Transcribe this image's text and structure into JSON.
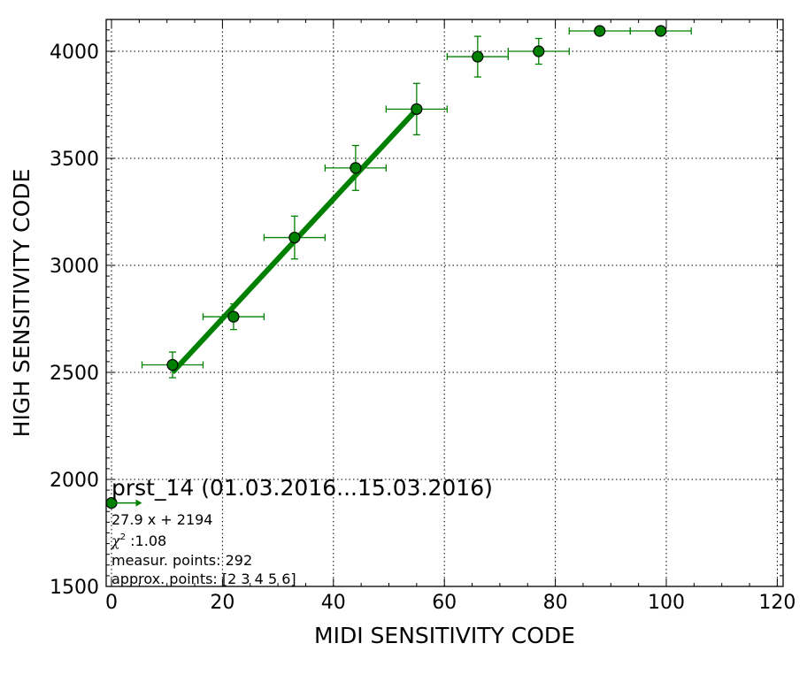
{
  "colors": {
    "series": "#008000",
    "marker_fill": "#008000",
    "marker_edge": "#000000",
    "grid": "#000000"
  },
  "chart_data": {
    "type": "scatter",
    "xlabel": "MIDI SENSITIVITY CODE",
    "ylabel": "HIGH SENSITIVITY CODE",
    "xlim": [
      0,
      120
    ],
    "ylim": [
      1500,
      4150
    ],
    "x_ticks": [
      0,
      20,
      40,
      60,
      80,
      100,
      120
    ],
    "y_ticks": [
      1500,
      2000,
      2500,
      3000,
      3500,
      4000
    ],
    "grid": true,
    "points": [
      {
        "x": 0,
        "y": 1890,
        "xerr": 0,
        "yerr": 0
      },
      {
        "x": 11,
        "y": 2535,
        "xerr": 5.5,
        "yerr": 60
      },
      {
        "x": 22,
        "y": 2760,
        "xerr": 5.5,
        "yerr": 60
      },
      {
        "x": 33,
        "y": 3130,
        "xerr": 5.5,
        "yerr": 100
      },
      {
        "x": 44,
        "y": 3455,
        "xerr": 5.5,
        "yerr": 105
      },
      {
        "x": 55,
        "y": 3730,
        "xerr": 5.5,
        "yerr": 120
      },
      {
        "x": 66,
        "y": 3975,
        "xerr": 5.5,
        "yerr": 95
      },
      {
        "x": 77,
        "y": 4000,
        "xerr": 5.5,
        "yerr": 60
      },
      {
        "x": 88,
        "y": 4095,
        "xerr": 5.5,
        "yerr": 0
      },
      {
        "x": 99,
        "y": 4095,
        "xerr": 5.5,
        "yerr": 0
      }
    ],
    "fit_line": {
      "x": [
        11,
        55
      ],
      "y": [
        2500,
        3728
      ]
    },
    "arrow": {
      "x_start": 0,
      "x_end": 5.5,
      "y": 1890
    },
    "annotation": {
      "title": "prst_14 (01.03.2016...15.03.2016)",
      "fit_label": "27.9 x + 2194",
      "chi2_symbol": "χ",
      "chi2_sup": "2",
      "chi2_value": " :1.08",
      "measur_points": "measur. points: 292",
      "approx_points": "approx. points: [2 3 4 5 6]"
    }
  }
}
